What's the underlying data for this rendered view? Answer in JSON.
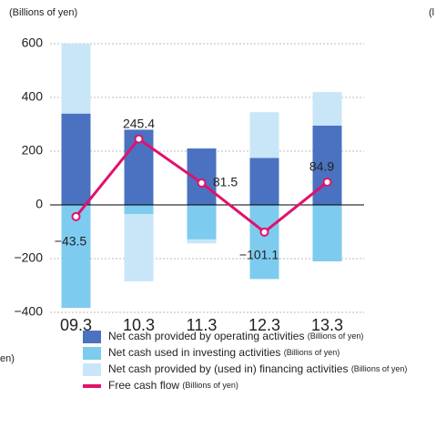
{
  "chart_data": {
    "type": "bar",
    "unit_label": "(Billions of yen)",
    "side_fragments": [
      "(l",
      "en)"
    ],
    "categories": [
      "09.3",
      "10.3",
      "11.3",
      "12.3",
      "13.3"
    ],
    "series": [
      {
        "name": "Net cash provided by operating activities",
        "color": "#4a72c0",
        "values": [
          340,
          280,
          210,
          175,
          295
        ]
      },
      {
        "name": "Net cash used in investing activities",
        "color": "#7ecbf0",
        "values": [
          -383.5,
          -34.6,
          -128.5,
          -276.1,
          -210.1
        ]
      },
      {
        "name": "Net cash provided by (used in) financing activities",
        "color": "#c8e6f8",
        "values": [
          260,
          -250,
          -15,
          170,
          125
        ]
      },
      {
        "name": "Free cash flow",
        "color": "#e0126b",
        "type": "line",
        "values": [
          -43.5,
          245.4,
          81.5,
          -101.1,
          84.9
        ],
        "value_labels": [
          "−43.5",
          "245.4",
          "81.5",
          "−101.1",
          "84.9"
        ]
      }
    ],
    "ylim": [
      -400,
      600
    ],
    "yticks": [
      {
        "value": -400,
        "label": "−400"
      },
      {
        "value": -200,
        "label": "−200"
      },
      0,
      200,
      400,
      600
    ],
    "grid": true
  }
}
